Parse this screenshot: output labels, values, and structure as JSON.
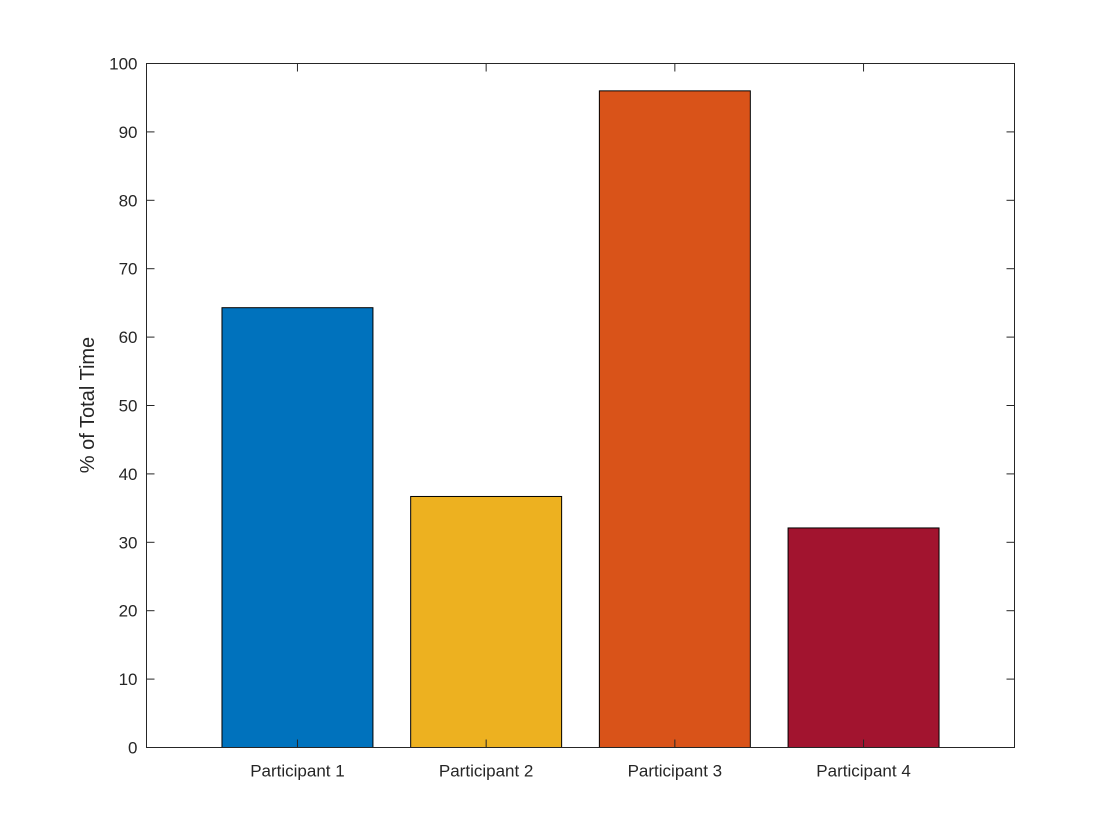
{
  "chart_data": {
    "type": "bar",
    "title": "",
    "xlabel": "",
    "ylabel": "% of Total Time",
    "categories": [
      "Participant 1",
      "Participant 2",
      "Participant 3",
      "Participant 4"
    ],
    "values": [
      64.3,
      36.7,
      96.0,
      32.1
    ],
    "colors": [
      "#0072BD",
      "#EDB120",
      "#D95319",
      "#A2142F"
    ],
    "ylim": [
      0,
      100
    ],
    "yticks": [
      0,
      10,
      20,
      30,
      40,
      50,
      60,
      70,
      80,
      90,
      100
    ],
    "grid": false,
    "legend": "none"
  }
}
